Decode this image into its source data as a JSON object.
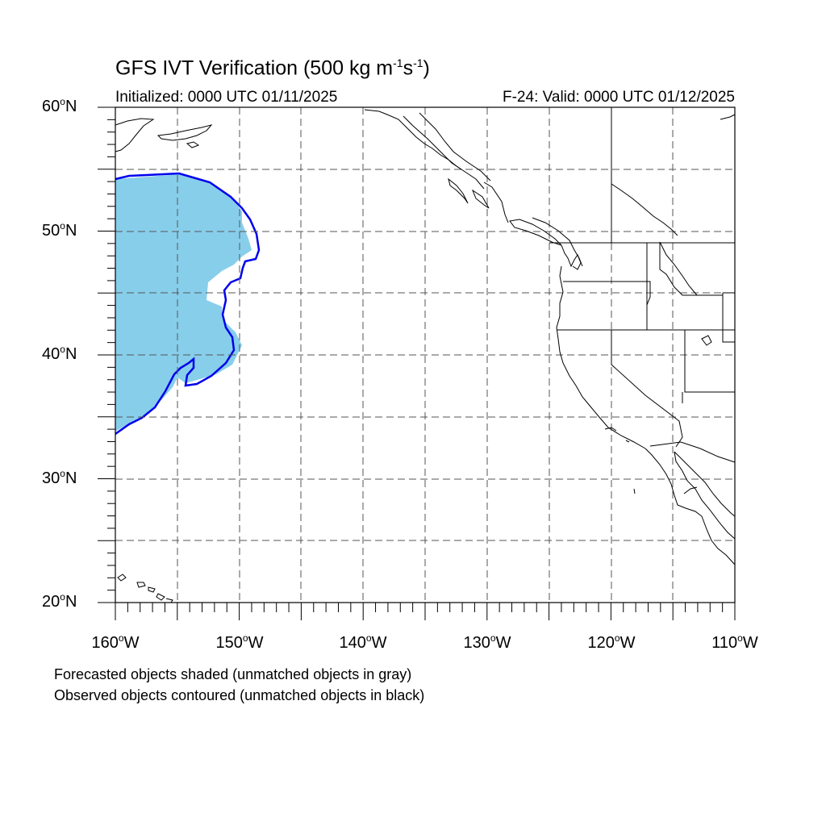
{
  "title": {
    "main": "GFS IVT Verification (500 kg m",
    "sup1": "-1",
    "mid": "s",
    "sup2": "-1",
    "end": ")"
  },
  "init_label": "Initialized: 0000 UTC 01/11/2025",
  "valid_label": "F-24: Valid: 0000 UTC 01/12/2025",
  "lat_labels": [
    {
      "num": "60",
      "hemi": "N"
    },
    {
      "num": "50",
      "hemi": "N"
    },
    {
      "num": "40",
      "hemi": "N"
    },
    {
      "num": "30",
      "hemi": "N"
    },
    {
      "num": "20",
      "hemi": "N"
    }
  ],
  "lon_labels": [
    {
      "num": "160",
      "hemi": "W"
    },
    {
      "num": "150",
      "hemi": "W"
    },
    {
      "num": "140",
      "hemi": "W"
    },
    {
      "num": "130",
      "hemi": "W"
    },
    {
      "num": "120",
      "hemi": "W"
    },
    {
      "num": "110",
      "hemi": "W"
    }
  ],
  "degree_symbol": "o",
  "footnote_1": "Forecasted objects shaded (unmatched objects in gray)",
  "footnote_2": "Observed objects contoured (unmatched objects in black)",
  "map_extent": {
    "lon_min": -160,
    "lon_max": -110,
    "lat_min": 20,
    "lat_max": 60
  },
  "colors": {
    "forecast_shading": "#87ceeb",
    "observed_contour": "#0000ee",
    "coastline": "#000000",
    "grid": "#555555"
  }
}
